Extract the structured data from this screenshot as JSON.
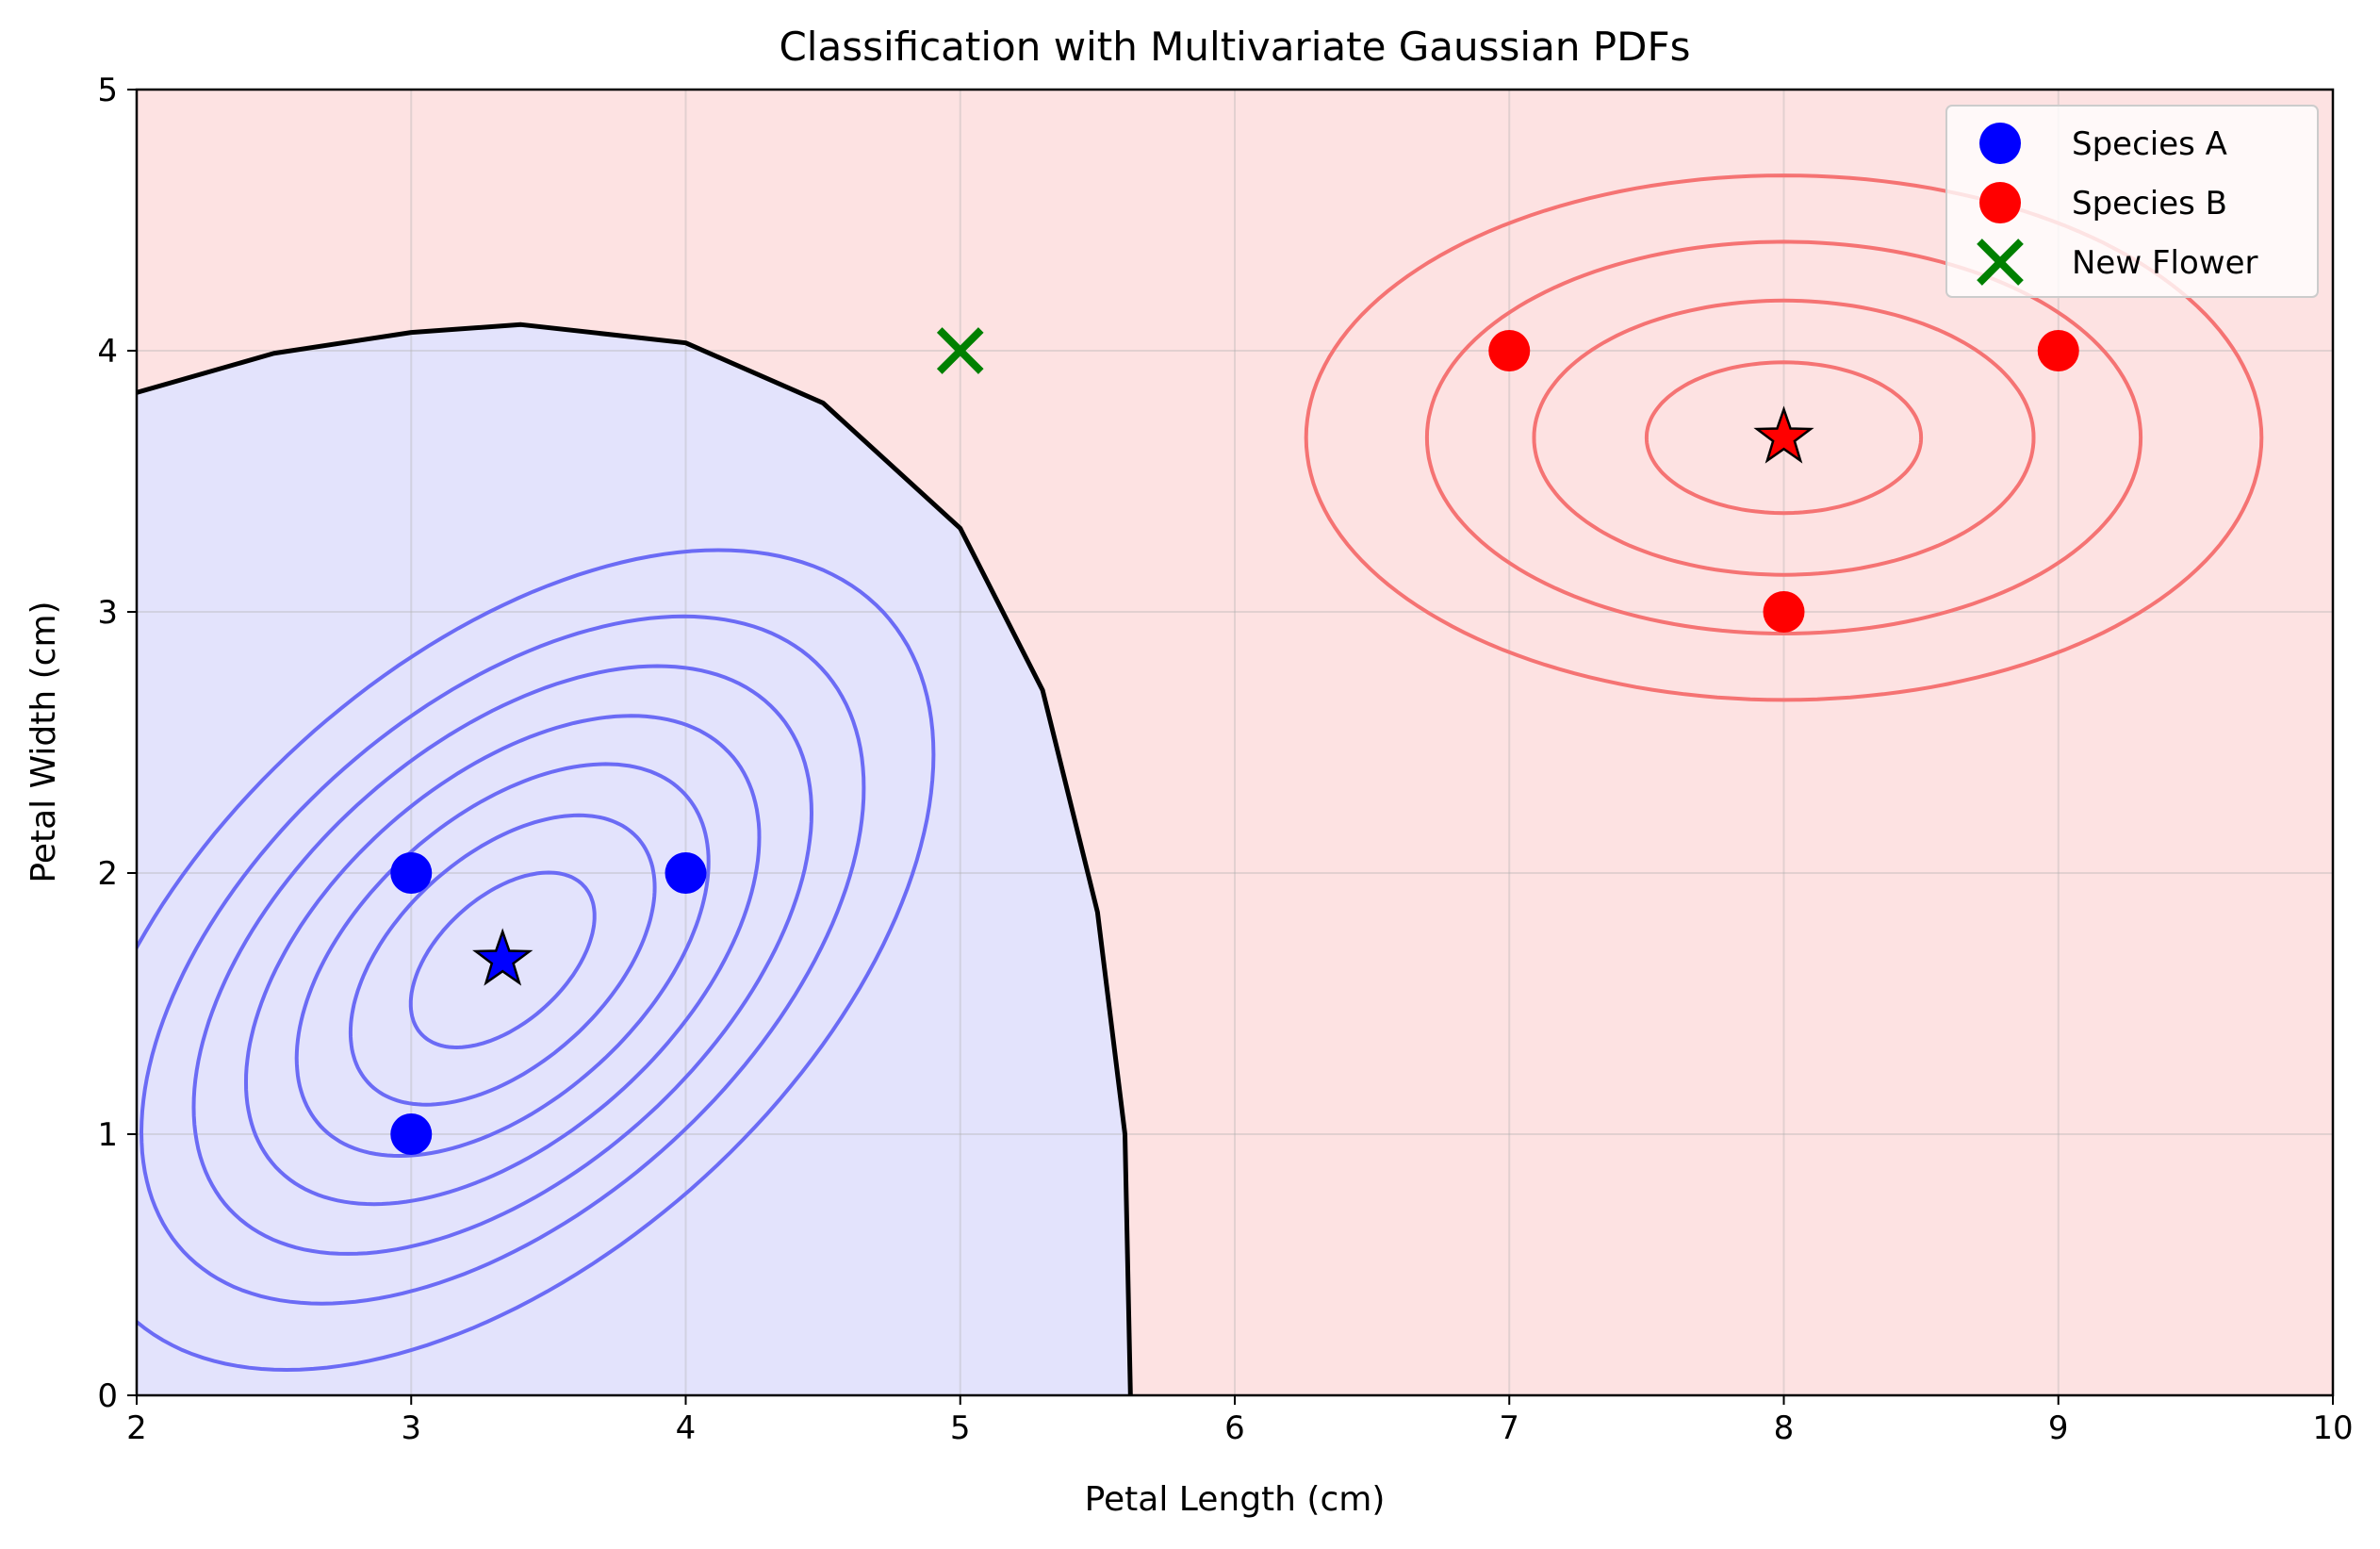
{
  "chart_data": {
    "type": "scatter",
    "title": "Classification with Multivariate Gaussian PDFs",
    "xlabel": "Petal Length (cm)",
    "ylabel": "Petal Width (cm)",
    "xlim": [
      2,
      10
    ],
    "ylim": [
      0,
      5
    ],
    "xticks": [
      2,
      3,
      4,
      5,
      6,
      7,
      8,
      9,
      10
    ],
    "yticks": [
      0,
      1,
      2,
      3,
      4,
      5
    ],
    "grid": true,
    "legend_position": "top-right",
    "colors": {
      "region_a": "#e3e3fc",
      "region_b": "#fde2e2",
      "contour_a": "#6b6bf5",
      "contour_b": "#f57373",
      "species_a": "#0000ff",
      "species_b": "#ff0000",
      "new_flower": "#008000",
      "boundary": "#000000"
    },
    "series": [
      {
        "name": "Species A",
        "marker": "circle",
        "color": "#0000ff",
        "points": [
          [
            3,
            2
          ],
          [
            4,
            2
          ],
          [
            3,
            1
          ]
        ]
      },
      {
        "name": "Species B",
        "marker": "circle",
        "color": "#ff0000",
        "points": [
          [
            7,
            4
          ],
          [
            9,
            4
          ],
          [
            8,
            3
          ]
        ]
      },
      {
        "name": "New Flower",
        "marker": "x",
        "color": "#008000",
        "points": [
          [
            5,
            4
          ]
        ]
      }
    ],
    "means": [
      {
        "class": "Species A",
        "marker": "star",
        "color": "#0000ff",
        "point": [
          3.333,
          1.667
        ]
      },
      {
        "class": "Species B",
        "marker": "star",
        "color": "#ff0000",
        "point": [
          8.0,
          3.667
        ]
      }
    ],
    "gaussians": [
      {
        "class": "Species A",
        "mean": [
          3.333,
          1.667
        ],
        "cov": [
          [
            0.333,
            0.167
          ],
          [
            0.167,
            0.333
          ]
        ],
        "contour_levels_r": [
          0.58,
          0.96,
          1.3,
          1.62,
          1.95,
          2.28,
          2.72
        ]
      },
      {
        "class": "Species B",
        "mean": [
          8.0,
          3.667
        ],
        "cov": [
          [
            1.0,
            0.0
          ],
          [
            0.0,
            0.333
          ]
        ],
        "contour_levels_r": [
          0.5,
          0.91,
          1.3,
          1.74
        ]
      }
    ],
    "decision_boundary": [
      [
        2.0,
        3.84
      ],
      [
        2.5,
        3.99
      ],
      [
        3.0,
        4.07
      ],
      [
        3.4,
        4.1
      ],
      [
        4.0,
        4.03
      ],
      [
        4.5,
        3.8
      ],
      [
        5.0,
        3.32
      ],
      [
        5.3,
        2.7
      ],
      [
        5.5,
        1.85
      ],
      [
        5.6,
        1.0
      ],
      [
        5.62,
        0.0
      ]
    ]
  }
}
